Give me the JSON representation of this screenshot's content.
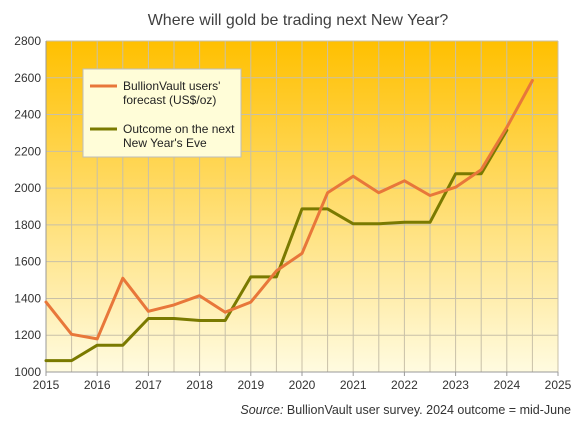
{
  "chart_data": {
    "type": "line",
    "title": "Where will gold be trading next New Year?",
    "xlabel": "",
    "ylabel": "",
    "xlim": [
      2015,
      2025
    ],
    "ylim": [
      1000,
      2800
    ],
    "x_ticks": [
      2015,
      2016,
      2017,
      2018,
      2019,
      2020,
      2021,
      2022,
      2023,
      2024,
      2025
    ],
    "y_ticks": [
      1000,
      1200,
      1400,
      1600,
      1800,
      2000,
      2200,
      2400,
      2600,
      2800
    ],
    "grid": true,
    "legend_position": "top-left",
    "background_gradient": [
      "#ffc000",
      "#fffbe0"
    ],
    "series": [
      {
        "name": "BullionVault users' forecast (US$/oz)",
        "color": "#e8773a",
        "points": [
          [
            2015.0,
            1380
          ],
          [
            2015.5,
            1205
          ],
          [
            2016.0,
            1180
          ],
          [
            2016.5,
            1510
          ],
          [
            2017.0,
            1330
          ],
          [
            2017.5,
            1365
          ],
          [
            2018.0,
            1415
          ],
          [
            2018.5,
            1325
          ],
          [
            2019.0,
            1380
          ],
          [
            2019.5,
            1550
          ],
          [
            2020.0,
            1645
          ],
          [
            2020.5,
            1975
          ],
          [
            2021.0,
            2065
          ],
          [
            2021.5,
            1975
          ],
          [
            2022.0,
            2040
          ],
          [
            2022.5,
            1960
          ],
          [
            2023.0,
            2005
          ],
          [
            2023.5,
            2100
          ],
          [
            2024.0,
            2330
          ],
          [
            2024.5,
            2585
          ]
        ]
      },
      {
        "name": "Outcome on the next New Year's Eve",
        "color": "#7a7a00",
        "points": [
          [
            2015.0,
            1062
          ],
          [
            2015.5,
            1062
          ],
          [
            2016.0,
            1146
          ],
          [
            2016.5,
            1146
          ],
          [
            2017.0,
            1291
          ],
          [
            2017.5,
            1291
          ],
          [
            2018.0,
            1280
          ],
          [
            2018.5,
            1280
          ],
          [
            2019.0,
            1517
          ],
          [
            2019.5,
            1517
          ],
          [
            2020.0,
            1887
          ],
          [
            2020.5,
            1887
          ],
          [
            2021.0,
            1806
          ],
          [
            2021.5,
            1806
          ],
          [
            2022.0,
            1814
          ],
          [
            2022.5,
            1814
          ],
          [
            2023.0,
            2078
          ],
          [
            2023.5,
            2078
          ],
          [
            2024.0,
            2315
          ]
        ]
      }
    ],
    "legend": [
      {
        "line1": "BullionVault users'",
        "line2": "forecast (US$/oz)"
      },
      {
        "line1": "Outcome on the next",
        "line2": "New Year's Eve"
      }
    ],
    "source": {
      "label": "Source:",
      "text": " BullionVault user survey. 2024 outcome = mid-June"
    }
  }
}
